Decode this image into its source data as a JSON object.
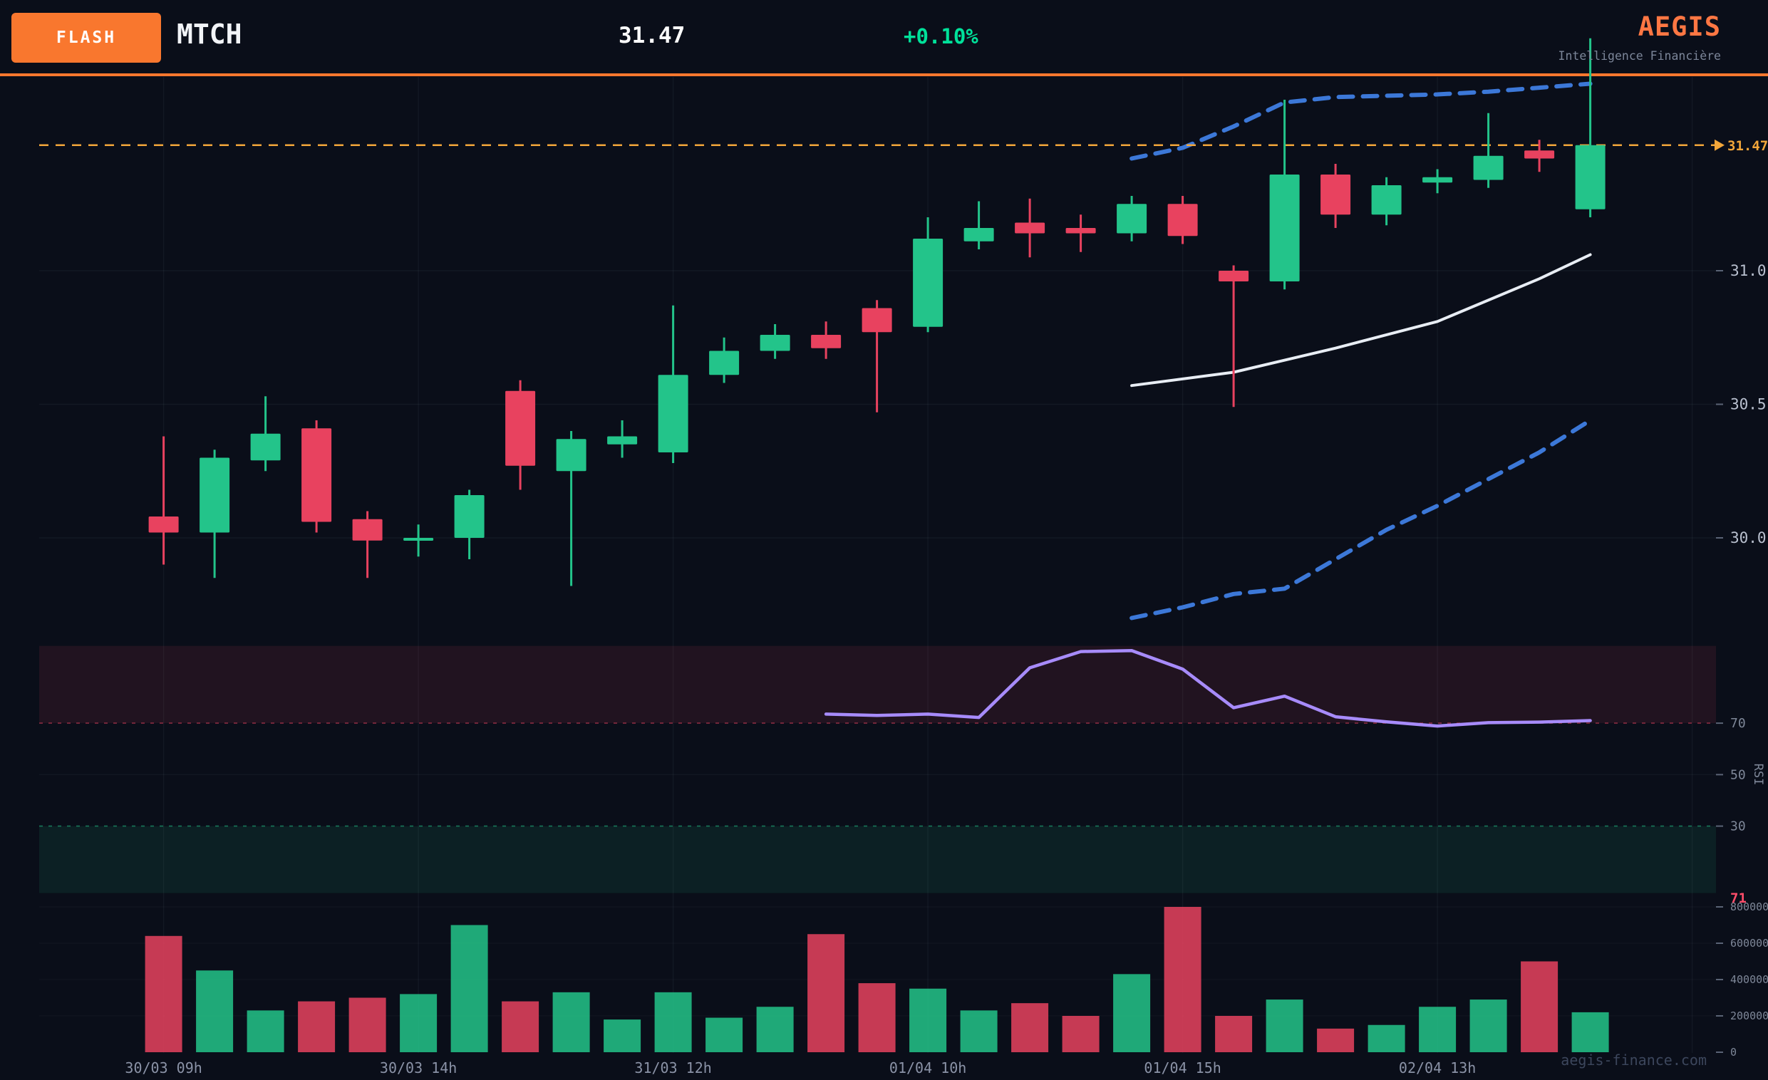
{
  "header": {
    "flash_label": "FLASH",
    "ticker": "MTCH",
    "price": "31.47",
    "change": "+0.10%",
    "brand": "AEGIS",
    "tagline": "Intelligence Financière"
  },
  "footer": {
    "watermark": "aegis-finance.com"
  },
  "colors": {
    "background": "#0a0e19",
    "header_rule_orange": "#f9772e",
    "brand_orange": "#ff7743",
    "change_green": "#00e19a",
    "up_green": "#23c48a",
    "down_red": "#e8425f",
    "bollinger_blue": "#3c78d8",
    "sma_white": "#e8edf4",
    "rsi_purple": "#a78bfa",
    "price_line_orange": "#f2a63a",
    "rsi_current_red": "#ff4d6a",
    "axis_text": "#7e8798",
    "price_axis_text": "#b9c0cf",
    "grid": "rgba(148,163,184,0.07)",
    "overbought_fill": "rgba(232,66,95,0.11)",
    "oversold_fill": "rgba(35,196,138,0.10)"
  },
  "chart_data": {
    "type": "candlestick",
    "last_price": 31.47,
    "price_line_label": "31.47",
    "price_axis_ticks": [
      "31.0",
      "30.5",
      "30.0"
    ],
    "time_labels": [
      {
        "index": 0,
        "label": "30/03 09h"
      },
      {
        "index": 5,
        "label": "30/03 14h"
      },
      {
        "index": 10,
        "label": "31/03 12h"
      },
      {
        "index": 15,
        "label": "01/04 10h"
      },
      {
        "index": 20,
        "label": "01/04 15h"
      },
      {
        "index": 25,
        "label": "02/04 13h"
      }
    ],
    "candles": [
      [
        30.08,
        30.38,
        29.9,
        30.02
      ],
      [
        30.02,
        30.33,
        29.85,
        30.3
      ],
      [
        30.29,
        30.53,
        30.25,
        30.39
      ],
      [
        30.41,
        30.44,
        30.02,
        30.06
      ],
      [
        30.07,
        30.1,
        29.85,
        29.99
      ],
      [
        29.99,
        30.05,
        29.93,
        30.0
      ],
      [
        30.0,
        30.18,
        29.92,
        30.16
      ],
      [
        30.55,
        30.59,
        30.18,
        30.27
      ],
      [
        30.25,
        30.4,
        29.82,
        30.37
      ],
      [
        30.35,
        30.44,
        30.3,
        30.38
      ],
      [
        30.32,
        30.87,
        30.28,
        30.61
      ],
      [
        30.61,
        30.75,
        30.58,
        30.7
      ],
      [
        30.7,
        30.8,
        30.67,
        30.76
      ],
      [
        30.76,
        30.81,
        30.67,
        30.71
      ],
      [
        30.86,
        30.89,
        30.47,
        30.77
      ],
      [
        30.79,
        31.2,
        30.77,
        31.12
      ],
      [
        31.11,
        31.26,
        31.08,
        31.16
      ],
      [
        31.18,
        31.27,
        31.05,
        31.14
      ],
      [
        31.16,
        31.21,
        31.07,
        31.14
      ],
      [
        31.14,
        31.28,
        31.11,
        31.25
      ],
      [
        31.25,
        31.28,
        31.1,
        31.13
      ],
      [
        31.0,
        31.02,
        30.49,
        30.96
      ],
      [
        30.96,
        31.64,
        30.93,
        31.36
      ],
      [
        31.36,
        31.4,
        31.16,
        31.21
      ],
      [
        31.21,
        31.35,
        31.17,
        31.32
      ],
      [
        31.33,
        31.38,
        31.29,
        31.35
      ],
      [
        31.34,
        31.59,
        31.31,
        31.43
      ],
      [
        31.45,
        31.49,
        31.37,
        31.42
      ],
      [
        31.23,
        31.87,
        31.2,
        31.47
      ]
    ],
    "volumes": [
      640000,
      450000,
      230000,
      280000,
      300000,
      320000,
      700000,
      280000,
      330000,
      180000,
      330000,
      190000,
      250000,
      650000,
      380000,
      350000,
      230000,
      270000,
      200000,
      430000,
      800000,
      200000,
      290000,
      130000,
      150000,
      250000,
      290000,
      500000,
      220000
    ],
    "volume_axis_ticks": [
      "800000",
      "600000",
      "400000",
      "200000",
      "0"
    ],
    "rsi": {
      "start_index": 13,
      "values": [
        73.5,
        73.0,
        73.5,
        72.2,
        91.5,
        97.8,
        98.2,
        91.0,
        76.0,
        80.5,
        72.5,
        70.5,
        68.9,
        70.2,
        70.4,
        71.0
      ],
      "axis_ticks": [
        "70",
        "50",
        "30"
      ],
      "label": "RSI",
      "current": "71",
      "overbought_level": 70,
      "oversold_level": 30
    },
    "indicators": {
      "sma": [
        {
          "i": 19,
          "p": 30.57
        },
        {
          "i": 21,
          "p": 30.62
        },
        {
          "i": 23,
          "p": 30.71
        },
        {
          "i": 25,
          "p": 30.81
        },
        {
          "i": 27,
          "p": 30.97
        },
        {
          "i": 28,
          "p": 31.06
        }
      ],
      "bb_upper": [
        {
          "i": 19,
          "p": 31.42
        },
        {
          "i": 20,
          "p": 31.46
        },
        {
          "i": 21,
          "p": 31.54
        },
        {
          "i": 22,
          "p": 31.63
        },
        {
          "i": 23,
          "p": 31.65
        },
        {
          "i": 25,
          "p": 31.66
        },
        {
          "i": 26,
          "p": 31.67
        },
        {
          "i": 28,
          "p": 31.7
        }
      ],
      "bb_lower": [
        {
          "i": 19,
          "p": 29.7
        },
        {
          "i": 20,
          "p": 29.74
        },
        {
          "i": 21,
          "p": 29.79
        },
        {
          "i": 22,
          "p": 29.81
        },
        {
          "i": 23,
          "p": 29.92
        },
        {
          "i": 24,
          "p": 30.03
        },
        {
          "i": 25,
          "p": 30.12
        },
        {
          "i": 26,
          "p": 30.22
        },
        {
          "i": 27,
          "p": 30.32
        },
        {
          "i": 28,
          "p": 30.44
        }
      ]
    }
  }
}
